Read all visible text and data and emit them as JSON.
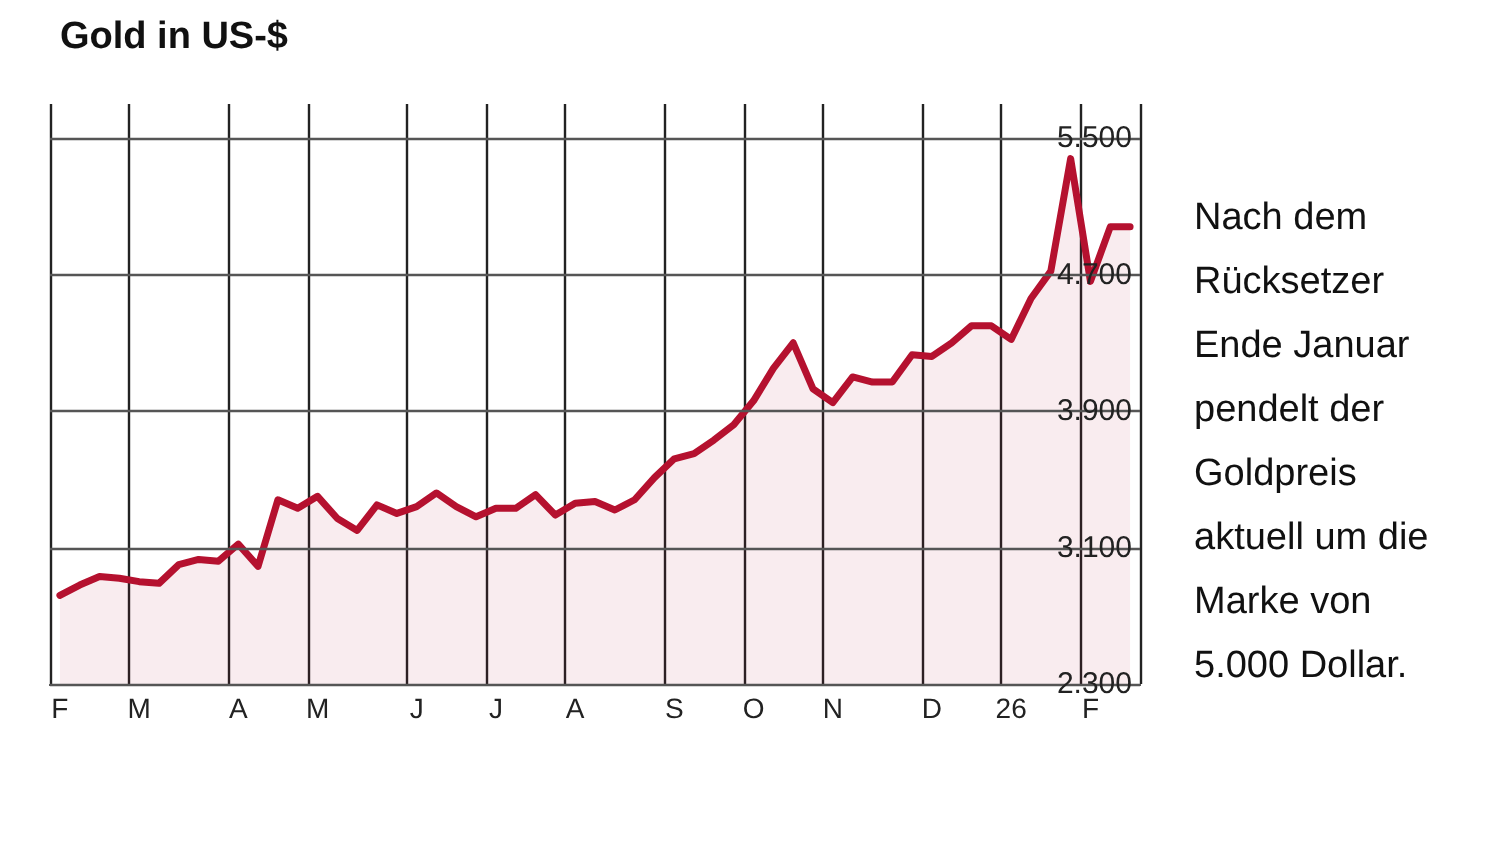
{
  "chart_data": {
    "type": "area",
    "title": "Gold in US-$",
    "annotations": [
      "Nach dem Rücksetzer Ende Januar pendelt der Goldpreis aktuell um die Marke von 5.000 Dollar."
    ],
    "categories": [
      "F",
      null,
      null,
      null,
      "M",
      null,
      null,
      null,
      null,
      "A",
      null,
      null,
      null,
      "M",
      null,
      null,
      null,
      null,
      "J",
      null,
      null,
      null,
      "J",
      null,
      null,
      null,
      "A",
      null,
      null,
      null,
      null,
      "S",
      null,
      null,
      null,
      "O",
      null,
      null,
      null,
      "N",
      null,
      null,
      null,
      null,
      "D",
      null,
      null,
      null,
      "26",
      null,
      null,
      null,
      "F",
      null,
      null
    ],
    "series": [
      {
        "color": "#b5112f",
        "values": [
          2820,
          2880,
          2930,
          2920,
          2900,
          2890,
          3000,
          3030,
          3020,
          3120,
          2990,
          3380,
          3330,
          3400,
          3270,
          3200,
          3350,
          3300,
          3340,
          3420,
          3340,
          3280,
          3330,
          3330,
          3410,
          3290,
          3360,
          3370,
          3320,
          3380,
          3510,
          3620,
          3650,
          3730,
          3820,
          3960,
          4150,
          4300,
          4030,
          3950,
          4100,
          4070,
          4070,
          4230,
          4220,
          4300,
          4400,
          4400,
          4320,
          4560,
          4720,
          5380,
          4660,
          4980,
          4980
        ]
      }
    ],
    "ylim": [
      2300,
      5700
    ],
    "yticks": [
      {
        "value": 2300,
        "label": "2.300"
      },
      {
        "value": 3100,
        "label": "3.100"
      },
      {
        "value": 3900,
        "label": "3.900"
      },
      {
        "value": 4700,
        "label": "4.700"
      },
      {
        "value": 5500,
        "label": "5.500"
      }
    ],
    "grid": true,
    "marker": "none",
    "line_style": "solid"
  }
}
